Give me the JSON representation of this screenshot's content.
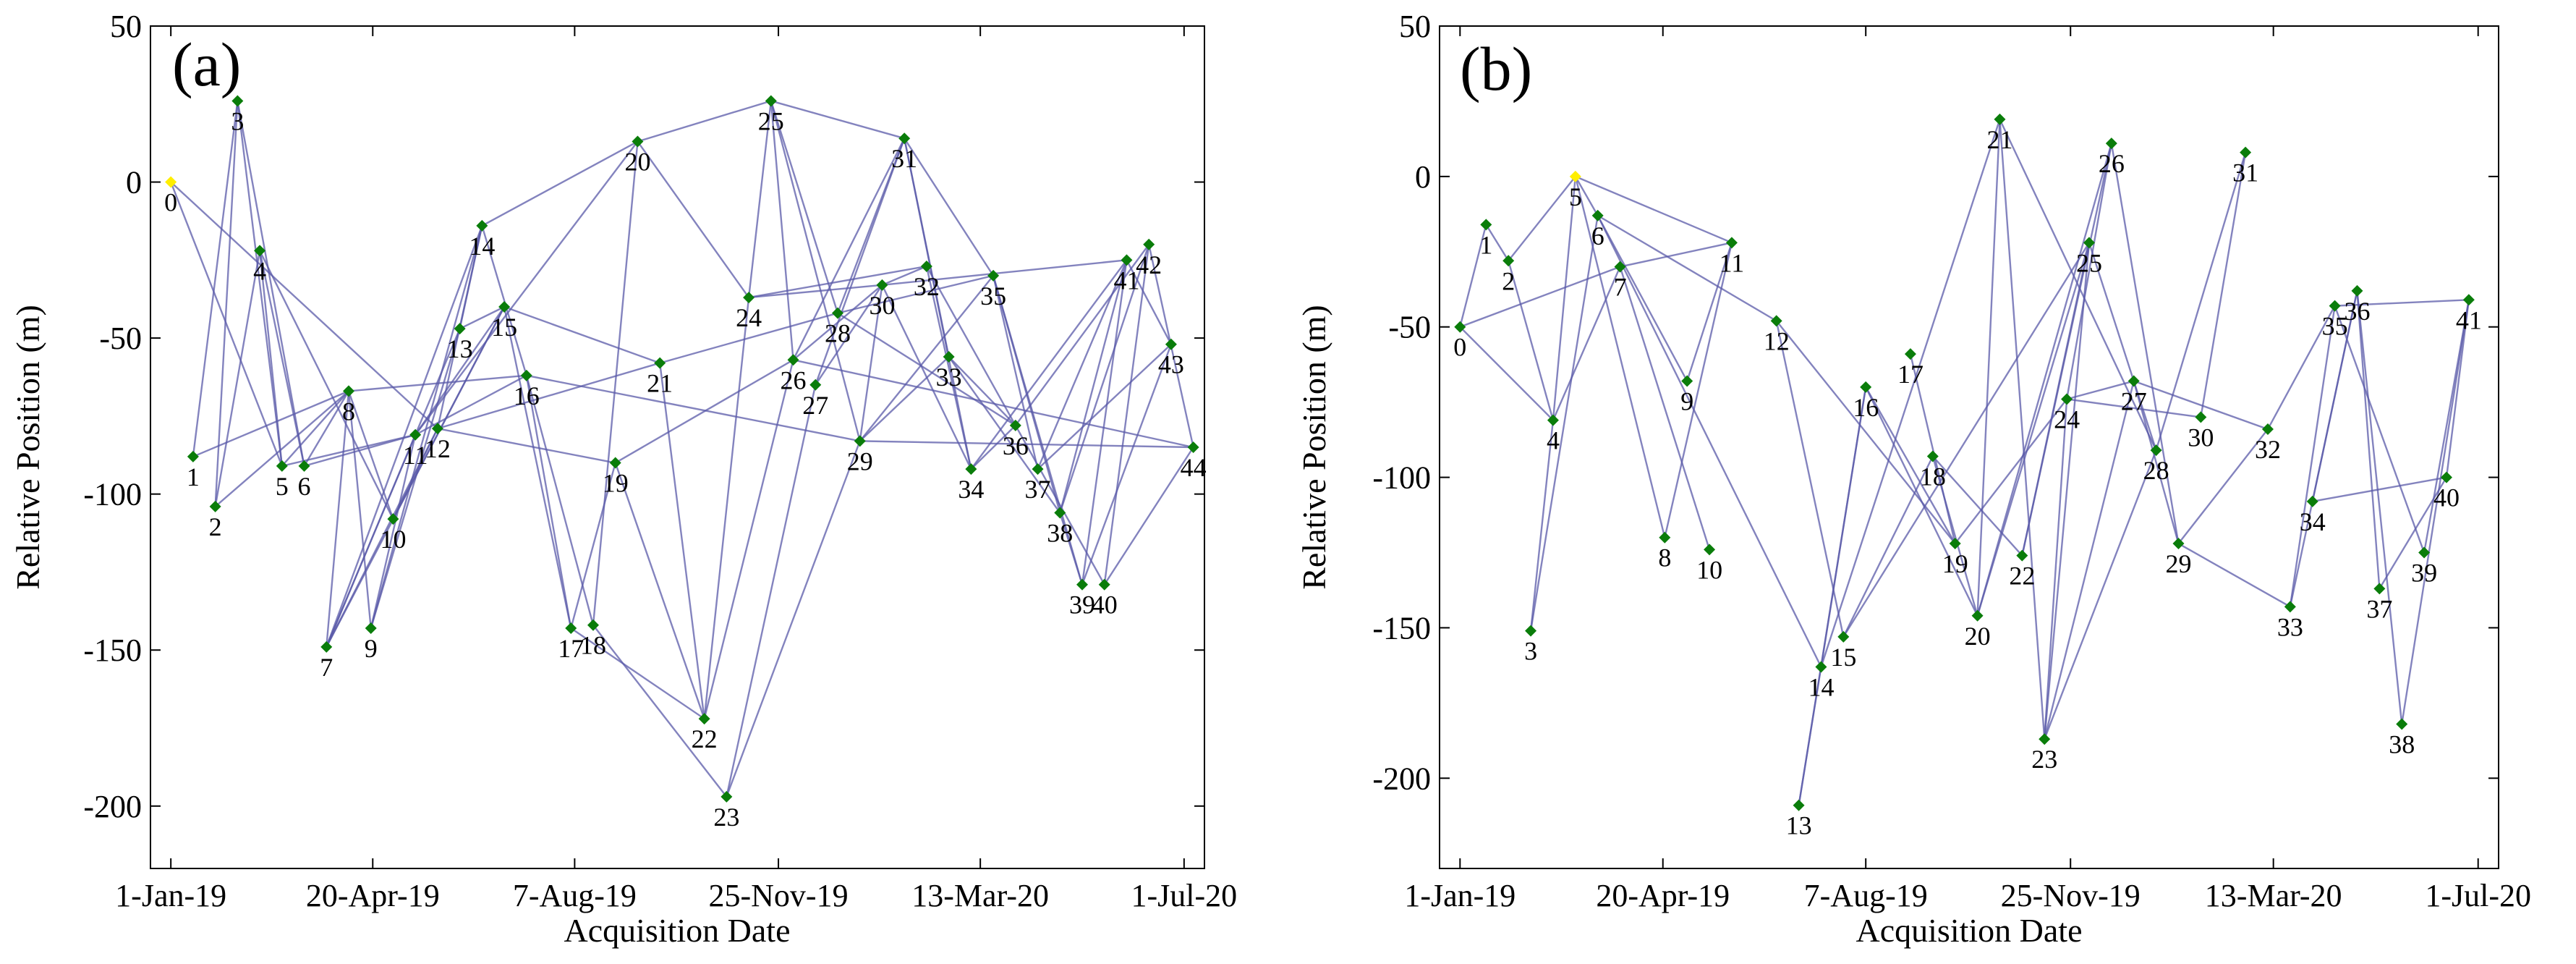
{
  "chart_data": [
    {
      "type": "scatter",
      "panel_label": "(a)",
      "xlabel": "Acquisition Date",
      "ylabel": "Relative Position (m)",
      "xticks": [
        "1-Jan-19",
        "20-Apr-19",
        "7-Aug-19",
        "25-Nov-19",
        "13-Mar-20",
        "1-Jul-20"
      ],
      "xlim_days": [
        -11,
        558
      ],
      "ylim": [
        -220,
        50
      ],
      "yticks": [
        50,
        0,
        -50,
        -100,
        -150,
        -200
      ],
      "colors": {
        "point": "#0a7d0a",
        "reference": "#ffee00",
        "edge": "#5a5aa8"
      },
      "points": [
        {
          "label": "0",
          "day": 0,
          "y": 0,
          "ref": true
        },
        {
          "label": "1",
          "day": 12,
          "y": -88
        },
        {
          "label": "2",
          "day": 24,
          "y": -104
        },
        {
          "label": "3",
          "day": 36,
          "y": 26
        },
        {
          "label": "4",
          "day": 48,
          "y": -22
        },
        {
          "label": "5",
          "day": 60,
          "y": -91
        },
        {
          "label": "6",
          "day": 72,
          "y": -91
        },
        {
          "label": "7",
          "day": 84,
          "y": -149
        },
        {
          "label": "8",
          "day": 96,
          "y": -67
        },
        {
          "label": "9",
          "day": 108,
          "y": -143
        },
        {
          "label": "10",
          "day": 120,
          "y": -108
        },
        {
          "label": "11",
          "day": 132,
          "y": -81
        },
        {
          "label": "12",
          "day": 144,
          "y": -79
        },
        {
          "label": "13",
          "day": 156,
          "y": -47
        },
        {
          "label": "14",
          "day": 168,
          "y": -14
        },
        {
          "label": "15",
          "day": 180,
          "y": -40
        },
        {
          "label": "16",
          "day": 192,
          "y": -62
        },
        {
          "label": "17",
          "day": 216,
          "y": -143
        },
        {
          "label": "18",
          "day": 228,
          "y": -142
        },
        {
          "label": "19",
          "day": 240,
          "y": -90
        },
        {
          "label": "20",
          "day": 252,
          "y": 13
        },
        {
          "label": "21",
          "day": 264,
          "y": -58
        },
        {
          "label": "22",
          "day": 288,
          "y": -172
        },
        {
          "label": "23",
          "day": 300,
          "y": -197
        },
        {
          "label": "24",
          "day": 312,
          "y": -37
        },
        {
          "label": "25",
          "day": 324,
          "y": 26
        },
        {
          "label": "26",
          "day": 336,
          "y": -57
        },
        {
          "label": "27",
          "day": 348,
          "y": -65
        },
        {
          "label": "28",
          "day": 360,
          "y": -42
        },
        {
          "label": "29",
          "day": 372,
          "y": -83
        },
        {
          "label": "30",
          "day": 384,
          "y": -33
        },
        {
          "label": "31",
          "day": 396,
          "y": 14
        },
        {
          "label": "32",
          "day": 408,
          "y": -27
        },
        {
          "label": "33",
          "day": 420,
          "y": -56
        },
        {
          "label": "34",
          "day": 432,
          "y": -92
        },
        {
          "label": "35",
          "day": 444,
          "y": -30
        },
        {
          "label": "36",
          "day": 456,
          "y": -78
        },
        {
          "label": "37",
          "day": 468,
          "y": -92
        },
        {
          "label": "38",
          "day": 480,
          "y": -106
        },
        {
          "label": "39",
          "day": 492,
          "y": -129
        },
        {
          "label": "40",
          "day": 504,
          "y": -129
        },
        {
          "label": "41",
          "day": 516,
          "y": -25
        },
        {
          "label": "42",
          "day": 528,
          "y": -20
        },
        {
          "label": "43",
          "day": 540,
          "y": -52
        },
        {
          "label": "44",
          "day": 552,
          "y": -85
        }
      ],
      "edges": [
        [
          0,
          5
        ],
        [
          0,
          12
        ],
        [
          1,
          3
        ],
        [
          1,
          8
        ],
        [
          2,
          3
        ],
        [
          2,
          4
        ],
        [
          2,
          8
        ],
        [
          3,
          5
        ],
        [
          3,
          6
        ],
        [
          4,
          5
        ],
        [
          4,
          6
        ],
        [
          4,
          10
        ],
        [
          5,
          8
        ],
        [
          5,
          11
        ],
        [
          6,
          8
        ],
        [
          6,
          11
        ],
        [
          7,
          8
        ],
        [
          7,
          11
        ],
        [
          7,
          12
        ],
        [
          7,
          13
        ],
        [
          7,
          14
        ],
        [
          7,
          15
        ],
        [
          8,
          9
        ],
        [
          8,
          10
        ],
        [
          8,
          16
        ],
        [
          9,
          11
        ],
        [
          9,
          13
        ],
        [
          9,
          14
        ],
        [
          10,
          12
        ],
        [
          10,
          15
        ],
        [
          11,
          15
        ],
        [
          11,
          16
        ],
        [
          11,
          20
        ],
        [
          12,
          14
        ],
        [
          12,
          19
        ],
        [
          12,
          21
        ],
        [
          13,
          14
        ],
        [
          13,
          15
        ],
        [
          14,
          16
        ],
        [
          14,
          20
        ],
        [
          15,
          17
        ],
        [
          15,
          21
        ],
        [
          16,
          17
        ],
        [
          16,
          18
        ],
        [
          16,
          29
        ],
        [
          17,
          19
        ],
        [
          17,
          22
        ],
        [
          18,
          20
        ],
        [
          18,
          23
        ],
        [
          19,
          22
        ],
        [
          19,
          26
        ],
        [
          20,
          24
        ],
        [
          20,
          25
        ],
        [
          21,
          22
        ],
        [
          21,
          28
        ],
        [
          22,
          24
        ],
        [
          22,
          26
        ],
        [
          23,
          27
        ],
        [
          23,
          29
        ],
        [
          24,
          25
        ],
        [
          24,
          30
        ],
        [
          24,
          32
        ],
        [
          25,
          26
        ],
        [
          25,
          28
        ],
        [
          25,
          29
        ],
        [
          25,
          31
        ],
        [
          26,
          30
        ],
        [
          26,
          31
        ],
        [
          26,
          44
        ],
        [
          27,
          30
        ],
        [
          27,
          31
        ],
        [
          28,
          31
        ],
        [
          28,
          35
        ],
        [
          28,
          36
        ],
        [
          29,
          30
        ],
        [
          29,
          33
        ],
        [
          29,
          35
        ],
        [
          29,
          44
        ],
        [
          30,
          32
        ],
        [
          30,
          34
        ],
        [
          30,
          41
        ],
        [
          31,
          33
        ],
        [
          31,
          34
        ],
        [
          31,
          35
        ],
        [
          32,
          34
        ],
        [
          32,
          36
        ],
        [
          33,
          36
        ],
        [
          33,
          38
        ],
        [
          34,
          36
        ],
        [
          34,
          41
        ],
        [
          35,
          37
        ],
        [
          35,
          38
        ],
        [
          35,
          39
        ],
        [
          36,
          40
        ],
        [
          36,
          42
        ],
        [
          37,
          41
        ],
        [
          37,
          43
        ],
        [
          38,
          39
        ],
        [
          38,
          41
        ],
        [
          38,
          42
        ],
        [
          39,
          41
        ],
        [
          39,
          43
        ],
        [
          40,
          42
        ],
        [
          40,
          44
        ],
        [
          41,
          43
        ],
        [
          42,
          44
        ]
      ]
    },
    {
      "type": "scatter",
      "panel_label": "(b)",
      "xlabel": "Acquisition Date",
      "ylabel": "Relative Position (m)",
      "xticks": [
        "1-Jan-19",
        "20-Apr-19",
        "7-Aug-19",
        "25-Nov-19",
        "13-Mar-20",
        "1-Jul-20"
      ],
      "xlim_days": [
        -11,
        558
      ],
      "ylim": [
        -230,
        50
      ],
      "yticks": [
        50,
        0,
        -50,
        -100,
        -150,
        -200
      ],
      "colors": {
        "point": "#0a7d0a",
        "reference": "#ffee00",
        "edge": "#5a5aa8"
      },
      "points": [
        {
          "label": "0",
          "day": 0,
          "y": -50
        },
        {
          "label": "1",
          "day": 14,
          "y": -16
        },
        {
          "label": "2",
          "day": 26,
          "y": -28
        },
        {
          "label": "3",
          "day": 38,
          "y": -151
        },
        {
          "label": "4",
          "day": 50,
          "y": -81
        },
        {
          "label": "5",
          "day": 62,
          "y": 0,
          "ref": true
        },
        {
          "label": "6",
          "day": 74,
          "y": -13
        },
        {
          "label": "7",
          "day": 86,
          "y": -30
        },
        {
          "label": "8",
          "day": 110,
          "y": -120
        },
        {
          "label": "9",
          "day": 122,
          "y": -68
        },
        {
          "label": "10",
          "day": 134,
          "y": -124
        },
        {
          "label": "11",
          "day": 146,
          "y": -22
        },
        {
          "label": "12",
          "day": 170,
          "y": -48
        },
        {
          "label": "13",
          "day": 182,
          "y": -209
        },
        {
          "label": "14",
          "day": 194,
          "y": -163
        },
        {
          "label": "15",
          "day": 206,
          "y": -153
        },
        {
          "label": "16",
          "day": 218,
          "y": -70
        },
        {
          "label": "17",
          "day": 242,
          "y": -59
        },
        {
          "label": "18",
          "day": 254,
          "y": -93
        },
        {
          "label": "19",
          "day": 266,
          "y": -122
        },
        {
          "label": "20",
          "day": 278,
          "y": -146
        },
        {
          "label": "21",
          "day": 290,
          "y": 19
        },
        {
          "label": "22",
          "day": 302,
          "y": -126
        },
        {
          "label": "23",
          "day": 314,
          "y": -187
        },
        {
          "label": "24",
          "day": 326,
          "y": -74
        },
        {
          "label": "25",
          "day": 338,
          "y": -22
        },
        {
          "label": "26",
          "day": 350,
          "y": 11
        },
        {
          "label": "27",
          "day": 362,
          "y": -68
        },
        {
          "label": "28",
          "day": 374,
          "y": -91
        },
        {
          "label": "29",
          "day": 386,
          "y": -122
        },
        {
          "label": "30",
          "day": 398,
          "y": -80
        },
        {
          "label": "31",
          "day": 422,
          "y": 8
        },
        {
          "label": "32",
          "day": 434,
          "y": -84
        },
        {
          "label": "33",
          "day": 446,
          "y": -143
        },
        {
          "label": "34",
          "day": 458,
          "y": -108
        },
        {
          "label": "35",
          "day": 470,
          "y": -43
        },
        {
          "label": "36",
          "day": 482,
          "y": -38
        },
        {
          "label": "37",
          "day": 494,
          "y": -137
        },
        {
          "label": "38",
          "day": 506,
          "y": -182
        },
        {
          "label": "39",
          "day": 518,
          "y": -125
        },
        {
          "label": "40",
          "day": 530,
          "y": -100
        },
        {
          "label": "41",
          "day": 542,
          "y": -41
        }
      ],
      "edges": [
        [
          0,
          1
        ],
        [
          0,
          4
        ],
        [
          0,
          7
        ],
        [
          1,
          2
        ],
        [
          2,
          5
        ],
        [
          2,
          4
        ],
        [
          3,
          4
        ],
        [
          3,
          6
        ],
        [
          4,
          5
        ],
        [
          4,
          7
        ],
        [
          5,
          6
        ],
        [
          5,
          8
        ],
        [
          5,
          11
        ],
        [
          6,
          9
        ],
        [
          6,
          12
        ],
        [
          6,
          14
        ],
        [
          7,
          11
        ],
        [
          7,
          10
        ],
        [
          8,
          11
        ],
        [
          9,
          11
        ],
        [
          12,
          15
        ],
        [
          12,
          19
        ],
        [
          13,
          14
        ],
        [
          13,
          16
        ],
        [
          14,
          21
        ],
        [
          14,
          16
        ],
        [
          15,
          18
        ],
        [
          15,
          25
        ],
        [
          16,
          19
        ],
        [
          16,
          20
        ],
        [
          17,
          19
        ],
        [
          18,
          20
        ],
        [
          18,
          22
        ],
        [
          19,
          24
        ],
        [
          20,
          21
        ],
        [
          20,
          25
        ],
        [
          20,
          26
        ],
        [
          21,
          23
        ],
        [
          21,
          28
        ],
        [
          22,
          25
        ],
        [
          22,
          26
        ],
        [
          23,
          24
        ],
        [
          23,
          25
        ],
        [
          23,
          27
        ],
        [
          23,
          28
        ],
        [
          24,
          26
        ],
        [
          24,
          30
        ],
        [
          24,
          27
        ],
        [
          25,
          28
        ],
        [
          26,
          29
        ],
        [
          27,
          29
        ],
        [
          27,
          32
        ],
        [
          28,
          31
        ],
        [
          29,
          32
        ],
        [
          29,
          33
        ],
        [
          30,
          31
        ],
        [
          32,
          35
        ],
        [
          33,
          36
        ],
        [
          33,
          35
        ],
        [
          34,
          36
        ],
        [
          34,
          40
        ],
        [
          35,
          39
        ],
        [
          35,
          41
        ],
        [
          36,
          37
        ],
        [
          36,
          38
        ],
        [
          37,
          40
        ],
        [
          38,
          41
        ],
        [
          39,
          41
        ],
        [
          40,
          41
        ]
      ]
    }
  ]
}
